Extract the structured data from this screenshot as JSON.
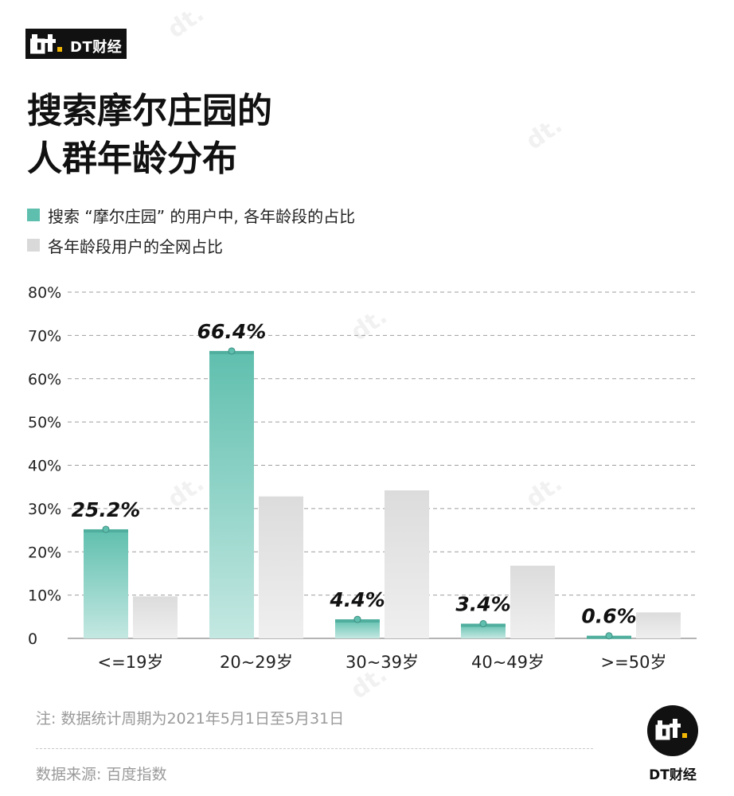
{
  "brand": {
    "name": "DT财经"
  },
  "title_line1": "搜索摩尔庄园的",
  "title_line2": "人群年龄分布",
  "footnote": "注: 数据统计周期为2021年5月1日至5月31日",
  "source": "数据来源: 百度指数",
  "colors": {
    "teal": "#5fbfae",
    "teal_light": "#c4e8e2",
    "gray": "#dddddd",
    "gray_light": "#ececec",
    "grid": "#9e9e9e"
  },
  "chart_data": {
    "type": "bar",
    "categories": [
      "<=19岁",
      "20~29岁",
      "30~39岁",
      "40~49岁",
      ">=50岁"
    ],
    "series": [
      {
        "name": "搜索 “摩尔庄园” 的用户中, 各年龄段的占比",
        "values": [
          25.2,
          66.4,
          4.4,
          3.4,
          0.6
        ],
        "labels": [
          "25.2%",
          "66.4%",
          "4.4%",
          "3.4%",
          "0.6%"
        ]
      },
      {
        "name": "各年龄段用户的全网占比",
        "values": [
          9.7,
          32.8,
          34.2,
          16.8,
          6.0
        ]
      }
    ],
    "yticks": [
      "0",
      "10%",
      "20%",
      "30%",
      "40%",
      "50%",
      "60%",
      "70%",
      "80%"
    ],
    "ylim": [
      0,
      80
    ],
    "grid": true,
    "legend": "top-left"
  }
}
